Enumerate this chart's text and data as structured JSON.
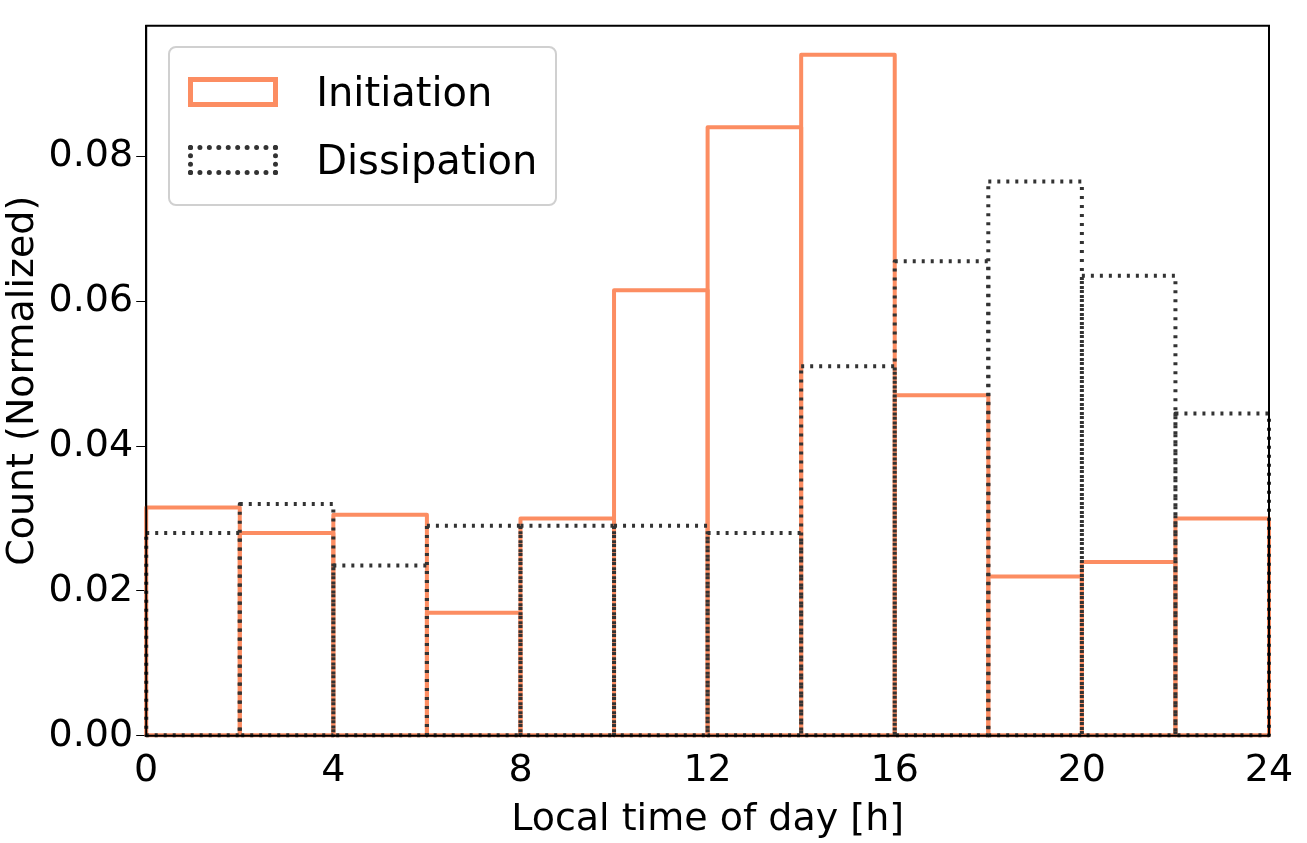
{
  "chart_data": {
    "type": "histogram",
    "xlabel": "Local time of day [h]",
    "ylabel": "Count (Normalized)",
    "bins": [
      0,
      2,
      4,
      6,
      8,
      10,
      12,
      14,
      16,
      18,
      20,
      22,
      24
    ],
    "series": [
      {
        "name": "Initiation",
        "color": "#fc8d62",
        "line_style": "solid",
        "values": [
          0.0315,
          0.028,
          0.0305,
          0.017,
          0.03,
          0.0615,
          0.084,
          0.094,
          0.047,
          0.022,
          0.024,
          0.03
        ]
      },
      {
        "name": "Dissipation",
        "color": "#333333",
        "line_style": "dotted",
        "values": [
          0.028,
          0.032,
          0.0235,
          0.029,
          0.029,
          0.029,
          0.028,
          0.051,
          0.0655,
          0.0765,
          0.0635,
          0.0445
        ]
      }
    ],
    "xlim": [
      0,
      24
    ],
    "xticks": [
      0,
      4,
      8,
      12,
      16,
      20,
      24
    ],
    "ylim": [
      0,
      0.098
    ],
    "yticks": [
      {
        "value": 0,
        "label": "0.00"
      },
      0.02,
      0.04,
      0.06,
      0.08
    ],
    "grid": false,
    "legend": "top left"
  }
}
